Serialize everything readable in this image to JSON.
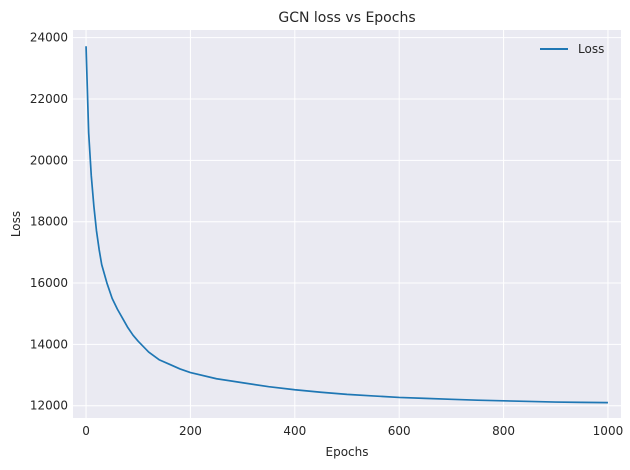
{
  "chart_data": {
    "type": "line",
    "title": "GCN loss vs Epochs",
    "xlabel": "Epochs",
    "ylabel": "Loss",
    "xlim": [
      -25,
      1025
    ],
    "ylim": [
      11600,
      24250
    ],
    "xticks": [
      0,
      200,
      400,
      600,
      800,
      1000
    ],
    "yticks": [
      12000,
      14000,
      16000,
      18000,
      20000,
      22000,
      24000
    ],
    "grid": true,
    "legend_position": "top-right",
    "series": [
      {
        "name": "Loss",
        "color": "#1f77b4",
        "points": [
          [
            0,
            23720
          ],
          [
            5,
            20900
          ],
          [
            10,
            19500
          ],
          [
            15,
            18500
          ],
          [
            20,
            17700
          ],
          [
            25,
            17100
          ],
          [
            30,
            16600
          ],
          [
            40,
            16000
          ],
          [
            50,
            15500
          ],
          [
            60,
            15150
          ],
          [
            70,
            14850
          ],
          [
            80,
            14550
          ],
          [
            90,
            14300
          ],
          [
            100,
            14100
          ],
          [
            120,
            13750
          ],
          [
            140,
            13500
          ],
          [
            160,
            13350
          ],
          [
            180,
            13200
          ],
          [
            200,
            13080
          ],
          [
            250,
            12880
          ],
          [
            300,
            12750
          ],
          [
            350,
            12620
          ],
          [
            400,
            12520
          ],
          [
            450,
            12440
          ],
          [
            500,
            12370
          ],
          [
            550,
            12320
          ],
          [
            600,
            12270
          ],
          [
            650,
            12240
          ],
          [
            700,
            12210
          ],
          [
            750,
            12180
          ],
          [
            800,
            12160
          ],
          [
            850,
            12140
          ],
          [
            900,
            12120
          ],
          [
            950,
            12110
          ],
          [
            1000,
            12100
          ]
        ]
      }
    ]
  }
}
